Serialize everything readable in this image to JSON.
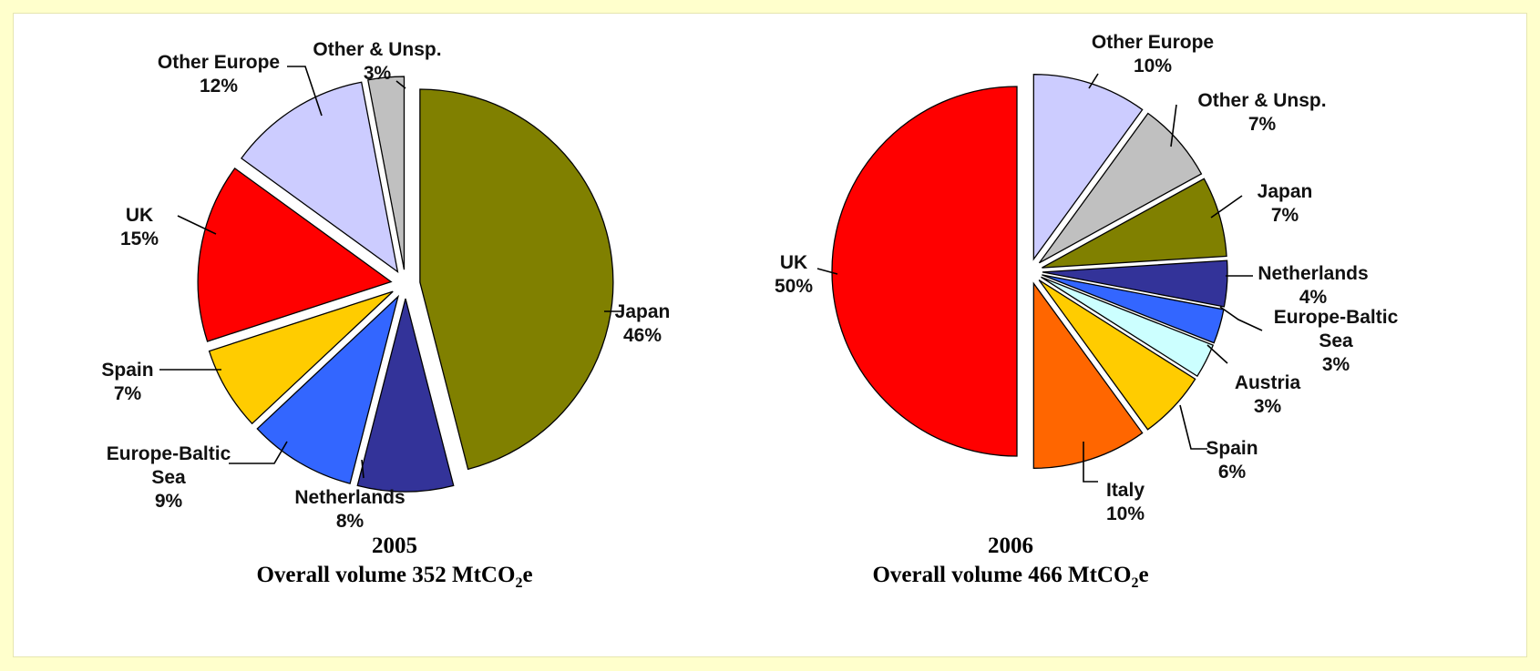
{
  "chart_data": [
    {
      "type": "pie",
      "year": "2005",
      "title": "Overall volume 352 MtCO",
      "title_sub": "2",
      "title_tail": "e",
      "slices": [
        {
          "label": [
            "Japan"
          ],
          "value": 46,
          "pct": "46%",
          "color": "#808000"
        },
        {
          "label": [
            "Netherlands"
          ],
          "value": 8,
          "pct": "8%",
          "color": "#333399"
        },
        {
          "label": [
            "Europe-Baltic",
            "Sea"
          ],
          "value": 9,
          "pct": "9%",
          "color": "#3366FF"
        },
        {
          "label": [
            "Spain"
          ],
          "value": 7,
          "pct": "7%",
          "color": "#FFCC00"
        },
        {
          "label": [
            "UK"
          ],
          "value": 15,
          "pct": "15%",
          "color": "#FF0000"
        },
        {
          "label": [
            "Other Europe"
          ],
          "value": 12,
          "pct": "12%",
          "color": "#CCCCFF"
        },
        {
          "label": [
            "Other & Unsp."
          ],
          "value": 3,
          "pct": "3%",
          "color": "#C0C0C0"
        }
      ]
    },
    {
      "type": "pie",
      "year": "2006",
      "title": "Overall volume 466 MtCO",
      "title_sub": "2",
      "title_tail": "e",
      "slices": [
        {
          "label": [
            "Other Europe"
          ],
          "value": 10,
          "pct": "10%",
          "color": "#CCCCFF"
        },
        {
          "label": [
            "Other & Unsp."
          ],
          "value": 7,
          "pct": "7%",
          "color": "#C0C0C0"
        },
        {
          "label": [
            "Japan"
          ],
          "value": 7,
          "pct": "7%",
          "color": "#808000"
        },
        {
          "label": [
            "Netherlands"
          ],
          "value": 4,
          "pct": "4%",
          "color": "#333399"
        },
        {
          "label": [
            "Europe-Baltic",
            "Sea"
          ],
          "value": 3,
          "pct": "3%",
          "color": "#3366FF"
        },
        {
          "label": [
            "Austria"
          ],
          "value": 3,
          "pct": "3%",
          "color": "#CCFFFF"
        },
        {
          "label": [
            "Spain"
          ],
          "value": 6,
          "pct": "6%",
          "color": "#FFCC00"
        },
        {
          "label": [
            "Italy"
          ],
          "value": 10,
          "pct": "10%",
          "color": "#FF6600"
        },
        {
          "label": [
            "UK"
          ],
          "value": 50,
          "pct": "50%",
          "color": "#FF0000"
        }
      ]
    }
  ]
}
